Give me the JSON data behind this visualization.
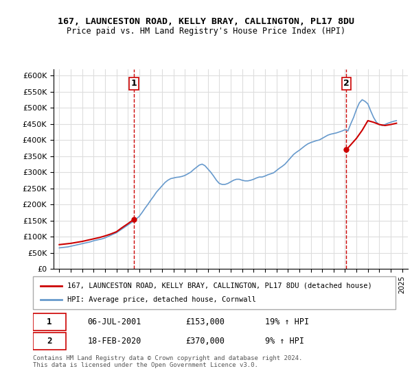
{
  "title": "167, LAUNCESTON ROAD, KELLY BRAY, CALLINGTON, PL17 8DU",
  "subtitle": "Price paid vs. HM Land Registry's House Price Index (HPI)",
  "legend_line1": "167, LAUNCESTON ROAD, KELLY BRAY, CALLINGTON, PL17 8DU (detached house)",
  "legend_line2": "HPI: Average price, detached house, Cornwall",
  "transaction1_date": "06-JUL-2001",
  "transaction1_price": "£153,000",
  "transaction1_hpi": "19% ↑ HPI",
  "transaction2_date": "18-FEB-2020",
  "transaction2_price": "£370,000",
  "transaction2_hpi": "9% ↑ HPI",
  "footer": "Contains HM Land Registry data © Crown copyright and database right 2024.\nThis data is licensed under the Open Government Licence v3.0.",
  "house_color": "#cc0000",
  "hpi_color": "#6699cc",
  "vline_color": "#cc0000",
  "background_color": "#ffffff",
  "grid_color": "#dddddd",
  "ylim": [
    0,
    620000
  ],
  "yticks": [
    0,
    50000,
    100000,
    150000,
    200000,
    250000,
    300000,
    350000,
    400000,
    450000,
    500000,
    550000,
    600000
  ],
  "xlim_start": 1994.5,
  "xlim_end": 2025.5,
  "transaction1_year": 2001.51,
  "transaction2_year": 2020.12,
  "transaction1_value": 153000,
  "transaction2_value": 370000,
  "hpi_years": [
    1995,
    1995.25,
    1995.5,
    1995.75,
    1996,
    1996.25,
    1996.5,
    1996.75,
    1997,
    1997.25,
    1997.5,
    1997.75,
    1998,
    1998.25,
    1998.5,
    1998.75,
    1999,
    1999.25,
    1999.5,
    1999.75,
    2000,
    2000.25,
    2000.5,
    2000.75,
    2001,
    2001.25,
    2001.5,
    2001.75,
    2002,
    2002.25,
    2002.5,
    2002.75,
    2003,
    2003.25,
    2003.5,
    2003.75,
    2004,
    2004.25,
    2004.5,
    2004.75,
    2005,
    2005.25,
    2005.5,
    2005.75,
    2006,
    2006.25,
    2006.5,
    2006.75,
    2007,
    2007.25,
    2007.5,
    2007.75,
    2008,
    2008.25,
    2008.5,
    2008.75,
    2009,
    2009.25,
    2009.5,
    2009.75,
    2010,
    2010.25,
    2010.5,
    2010.75,
    2011,
    2011.25,
    2011.5,
    2011.75,
    2012,
    2012.25,
    2012.5,
    2012.75,
    2013,
    2013.25,
    2013.5,
    2013.75,
    2014,
    2014.25,
    2014.5,
    2014.75,
    2015,
    2015.25,
    2015.5,
    2015.75,
    2016,
    2016.25,
    2016.5,
    2016.75,
    2017,
    2017.25,
    2017.5,
    2017.75,
    2018,
    2018.25,
    2018.5,
    2018.75,
    2019,
    2019.25,
    2019.5,
    2019.75,
    2020,
    2020.25,
    2020.5,
    2020.75,
    2021,
    2021.25,
    2021.5,
    2021.75,
    2022,
    2022.25,
    2022.5,
    2022.75,
    2023,
    2023.25,
    2023.5,
    2023.75,
    2024,
    2024.25,
    2024.5
  ],
  "hpi_values": [
    65000,
    66000,
    67000,
    68000,
    70000,
    72000,
    74000,
    76000,
    78000,
    80000,
    82000,
    84000,
    87000,
    89000,
    91000,
    93000,
    96000,
    100000,
    104000,
    108000,
    112000,
    118000,
    124000,
    130000,
    136000,
    142000,
    148000,
    155000,
    163000,
    175000,
    188000,
    200000,
    213000,
    225000,
    238000,
    248000,
    258000,
    268000,
    275000,
    280000,
    282000,
    284000,
    285000,
    287000,
    290000,
    295000,
    300000,
    308000,
    315000,
    322000,
    325000,
    320000,
    310000,
    300000,
    288000,
    275000,
    265000,
    262000,
    262000,
    265000,
    270000,
    275000,
    278000,
    278000,
    275000,
    273000,
    273000,
    275000,
    278000,
    282000,
    285000,
    285000,
    288000,
    292000,
    295000,
    298000,
    305000,
    312000,
    318000,
    325000,
    335000,
    345000,
    355000,
    362000,
    368000,
    375000,
    382000,
    388000,
    392000,
    395000,
    398000,
    400000,
    405000,
    410000,
    415000,
    418000,
    420000,
    422000,
    425000,
    428000,
    432000,
    428000,
    450000,
    470000,
    495000,
    515000,
    525000,
    520000,
    512000,
    490000,
    470000,
    455000,
    448000,
    445000,
    448000,
    452000,
    455000,
    458000,
    460000
  ],
  "house_years": [
    2001.51,
    2020.12
  ],
  "house_values": [
    153000,
    370000
  ],
  "house_line_years": [
    1995,
    1995.5,
    1996,
    1996.5,
    1997,
    1997.5,
    1998,
    1998.5,
    1999,
    1999.5,
    2000,
    2000.5,
    2001,
    2001.51,
    2001.51,
    2020.12,
    2020.12,
    2020.5,
    2021,
    2021.5,
    2022,
    2022.5,
    2023,
    2023.5,
    2024,
    2024.5
  ],
  "house_line_values": [
    75000,
    77000,
    79000,
    82000,
    85000,
    89000,
    93000,
    97000,
    102000,
    108000,
    115000,
    128000,
    140000,
    153000,
    153000,
    370000,
    370000,
    385000,
    405000,
    430000,
    460000,
    455000,
    448000,
    445000,
    448000,
    452000
  ]
}
